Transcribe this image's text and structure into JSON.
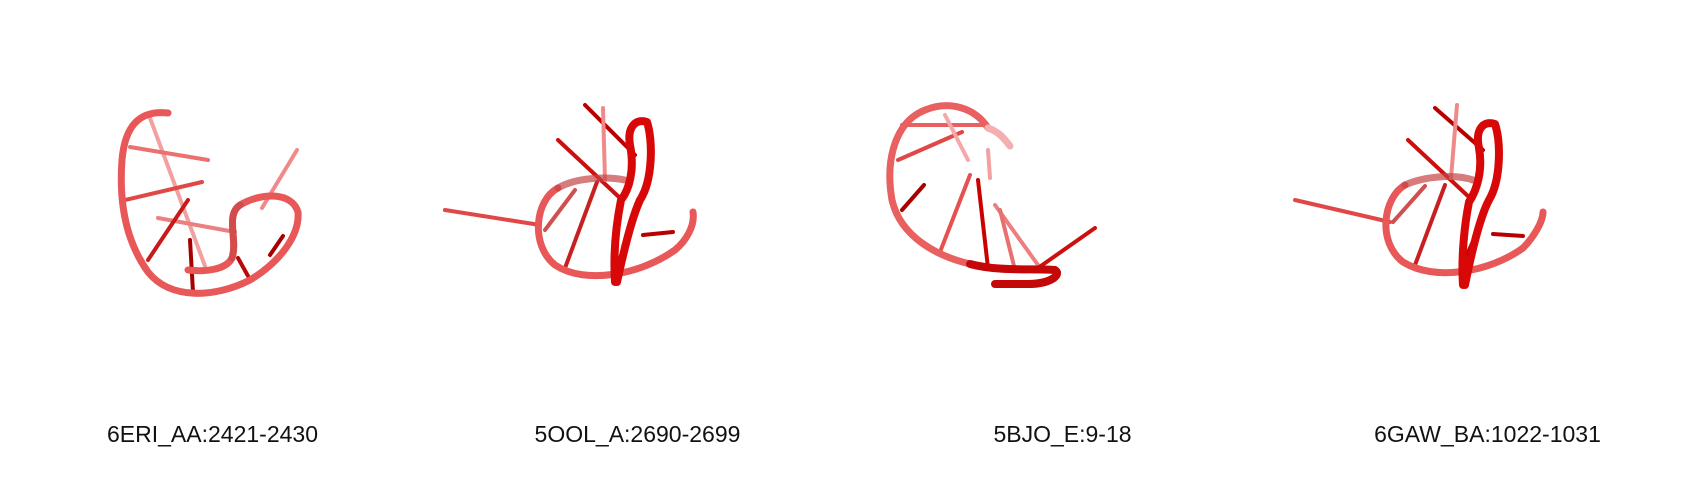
{
  "structures": [
    {
      "id": "6ERI_AA:2421-2430",
      "label": "6ERI_AA:2421-2430",
      "thumbnail_icon": "rna-backbone-cartoon-icon"
    },
    {
      "id": "5OOL_A:2690-2699",
      "label": "5OOL_A:2690-2699",
      "thumbnail_icon": "rna-backbone-cartoon-icon"
    },
    {
      "id": "5BJO_E:9-18",
      "label": "5BJO_E:9-18",
      "thumbnail_icon": "rna-backbone-cartoon-icon"
    },
    {
      "id": "6GAW_BA:1022-1031",
      "label": "6GAW_BA:1022-1031",
      "thumbnail_icon": "rna-backbone-cartoon-icon"
    }
  ],
  "colors": {
    "backbone_light": "#e85a5a",
    "backbone_main": "#e33333",
    "backbone_dark": "#c40000",
    "base_light": "#f08a8a",
    "base_dark": "#a80000",
    "caption": "#111111"
  }
}
